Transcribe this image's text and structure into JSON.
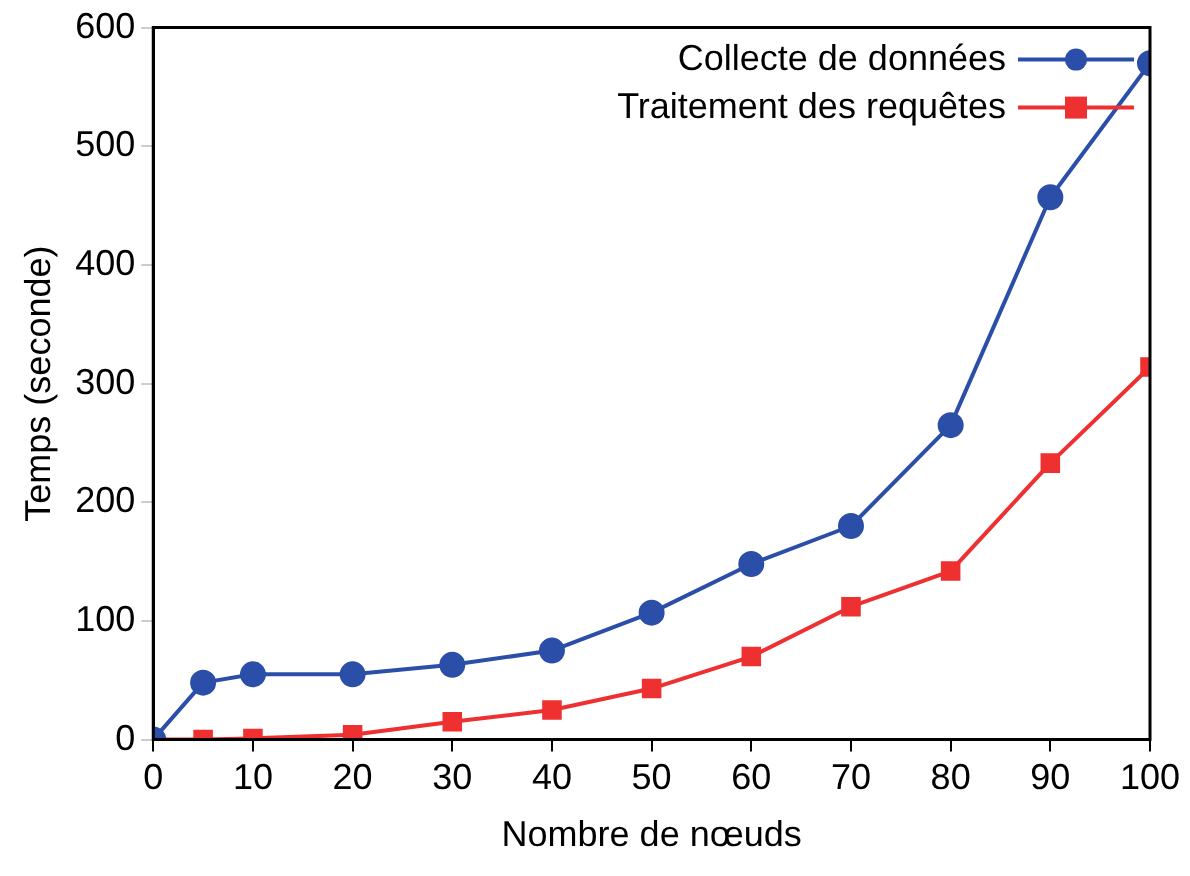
{
  "chart_data": {
    "type": "line",
    "xlabel": "Nombre de nœuds",
    "ylabel": "Temps (seconde)",
    "x": [
      0,
      5,
      10,
      20,
      30,
      40,
      50,
      60,
      70,
      80,
      90,
      100
    ],
    "series": [
      {
        "name": "Collecte de données",
        "color": "#2b4fa8",
        "marker": "circle",
        "values": [
          0,
          48,
          55,
          55,
          63,
          75,
          107,
          148,
          180,
          265,
          457,
          570
        ]
      },
      {
        "name": "Traitement des requêtes",
        "color": "#ee3030",
        "marker": "square",
        "values": [
          0,
          0,
          1,
          4,
          15,
          25,
          43,
          70,
          112,
          142,
          233,
          314
        ]
      }
    ],
    "xlim": [
      0,
      100
    ],
    "xticks": [
      0,
      10,
      20,
      30,
      40,
      50,
      60,
      70,
      80,
      90,
      100
    ],
    "ylim": [
      0,
      600
    ],
    "yticks": [
      0,
      100,
      200,
      300,
      400,
      500,
      600
    ],
    "grid": false,
    "legend": "top right"
  }
}
